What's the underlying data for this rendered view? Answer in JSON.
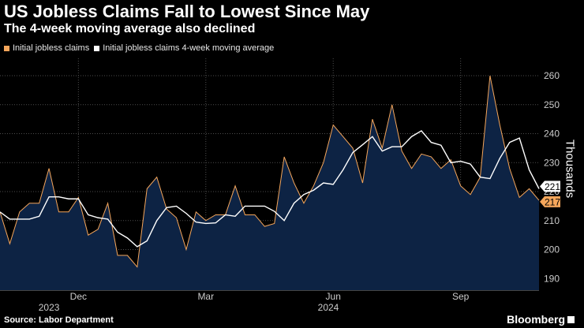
{
  "header": {
    "title": "US Jobless Claims Fall to Lowest Since May",
    "subtitle": "The 4-week moving average also declined"
  },
  "legend": [
    {
      "label": "Initial jobless claims",
      "color": "#f5a65b"
    },
    {
      "label": "Initial jobless claims 4-week moving average",
      "color": "#ffffff"
    }
  ],
  "footer": {
    "source": "Source: Labor Department",
    "brand": "Bloomberg"
  },
  "colors": {
    "background": "#000000",
    "area_fill": "#0d2344",
    "claims_line": "#f5a65b",
    "average_line": "#ffffff",
    "grid": "#4d4d4d",
    "axis_text": "#cccccc"
  },
  "chart_data": {
    "type": "line",
    "ylabel": "Thousands",
    "ylim": [
      186,
      266
    ],
    "yticks": [
      190,
      200,
      210,
      220,
      230,
      240,
      250,
      260
    ],
    "xticks": [
      {
        "label": "Dec",
        "index": 8
      },
      {
        "label": "Mar",
        "index": 21
      },
      {
        "label": "Jun",
        "index": 34
      },
      {
        "label": "Sep",
        "index": 47
      }
    ],
    "year_labels": [
      {
        "label": "2023",
        "index": 5
      },
      {
        "label": "2024",
        "index": 33.5
      }
    ],
    "end_labels": {
      "average": "221",
      "claims": "217"
    },
    "series": [
      {
        "name": "Initial jobless claims",
        "style": "area",
        "color": "#f5a65b",
        "values": [
          213,
          202,
          213,
          216,
          216,
          228,
          213,
          213,
          218,
          205,
          207,
          216,
          198,
          198,
          194,
          221,
          225,
          214,
          211,
          200,
          213,
          210,
          212,
          212,
          222,
          212,
          212,
          208,
          209,
          232,
          223,
          216,
          222,
          230,
          243,
          239,
          235,
          223,
          245,
          235,
          250,
          234,
          228,
          233,
          232,
          228,
          231,
          222,
          219,
          225,
          260,
          243,
          228,
          218,
          221,
          217
        ]
      },
      {
        "name": "Initial jobless claims 4-week moving average",
        "style": "line",
        "color": "#ffffff",
        "values": [
          213,
          210.5,
          210.5,
          210.5,
          211.5,
          218.2,
          218.2,
          217.5,
          217.5,
          212,
          211,
          210.5,
          206,
          204,
          201,
          203,
          210,
          214.5,
          215,
          212.5,
          209.5,
          209,
          209.2,
          212,
          211.5,
          215,
          215,
          215,
          213.2,
          210,
          216,
          219,
          220.5,
          223,
          222.5,
          227.5,
          233.5,
          236.2,
          239,
          234,
          235.5,
          235.5,
          239,
          241,
          237,
          236,
          230,
          230.5,
          229.5,
          225,
          224.5,
          231.5,
          237,
          238.5,
          227.5,
          221
        ]
      }
    ]
  }
}
